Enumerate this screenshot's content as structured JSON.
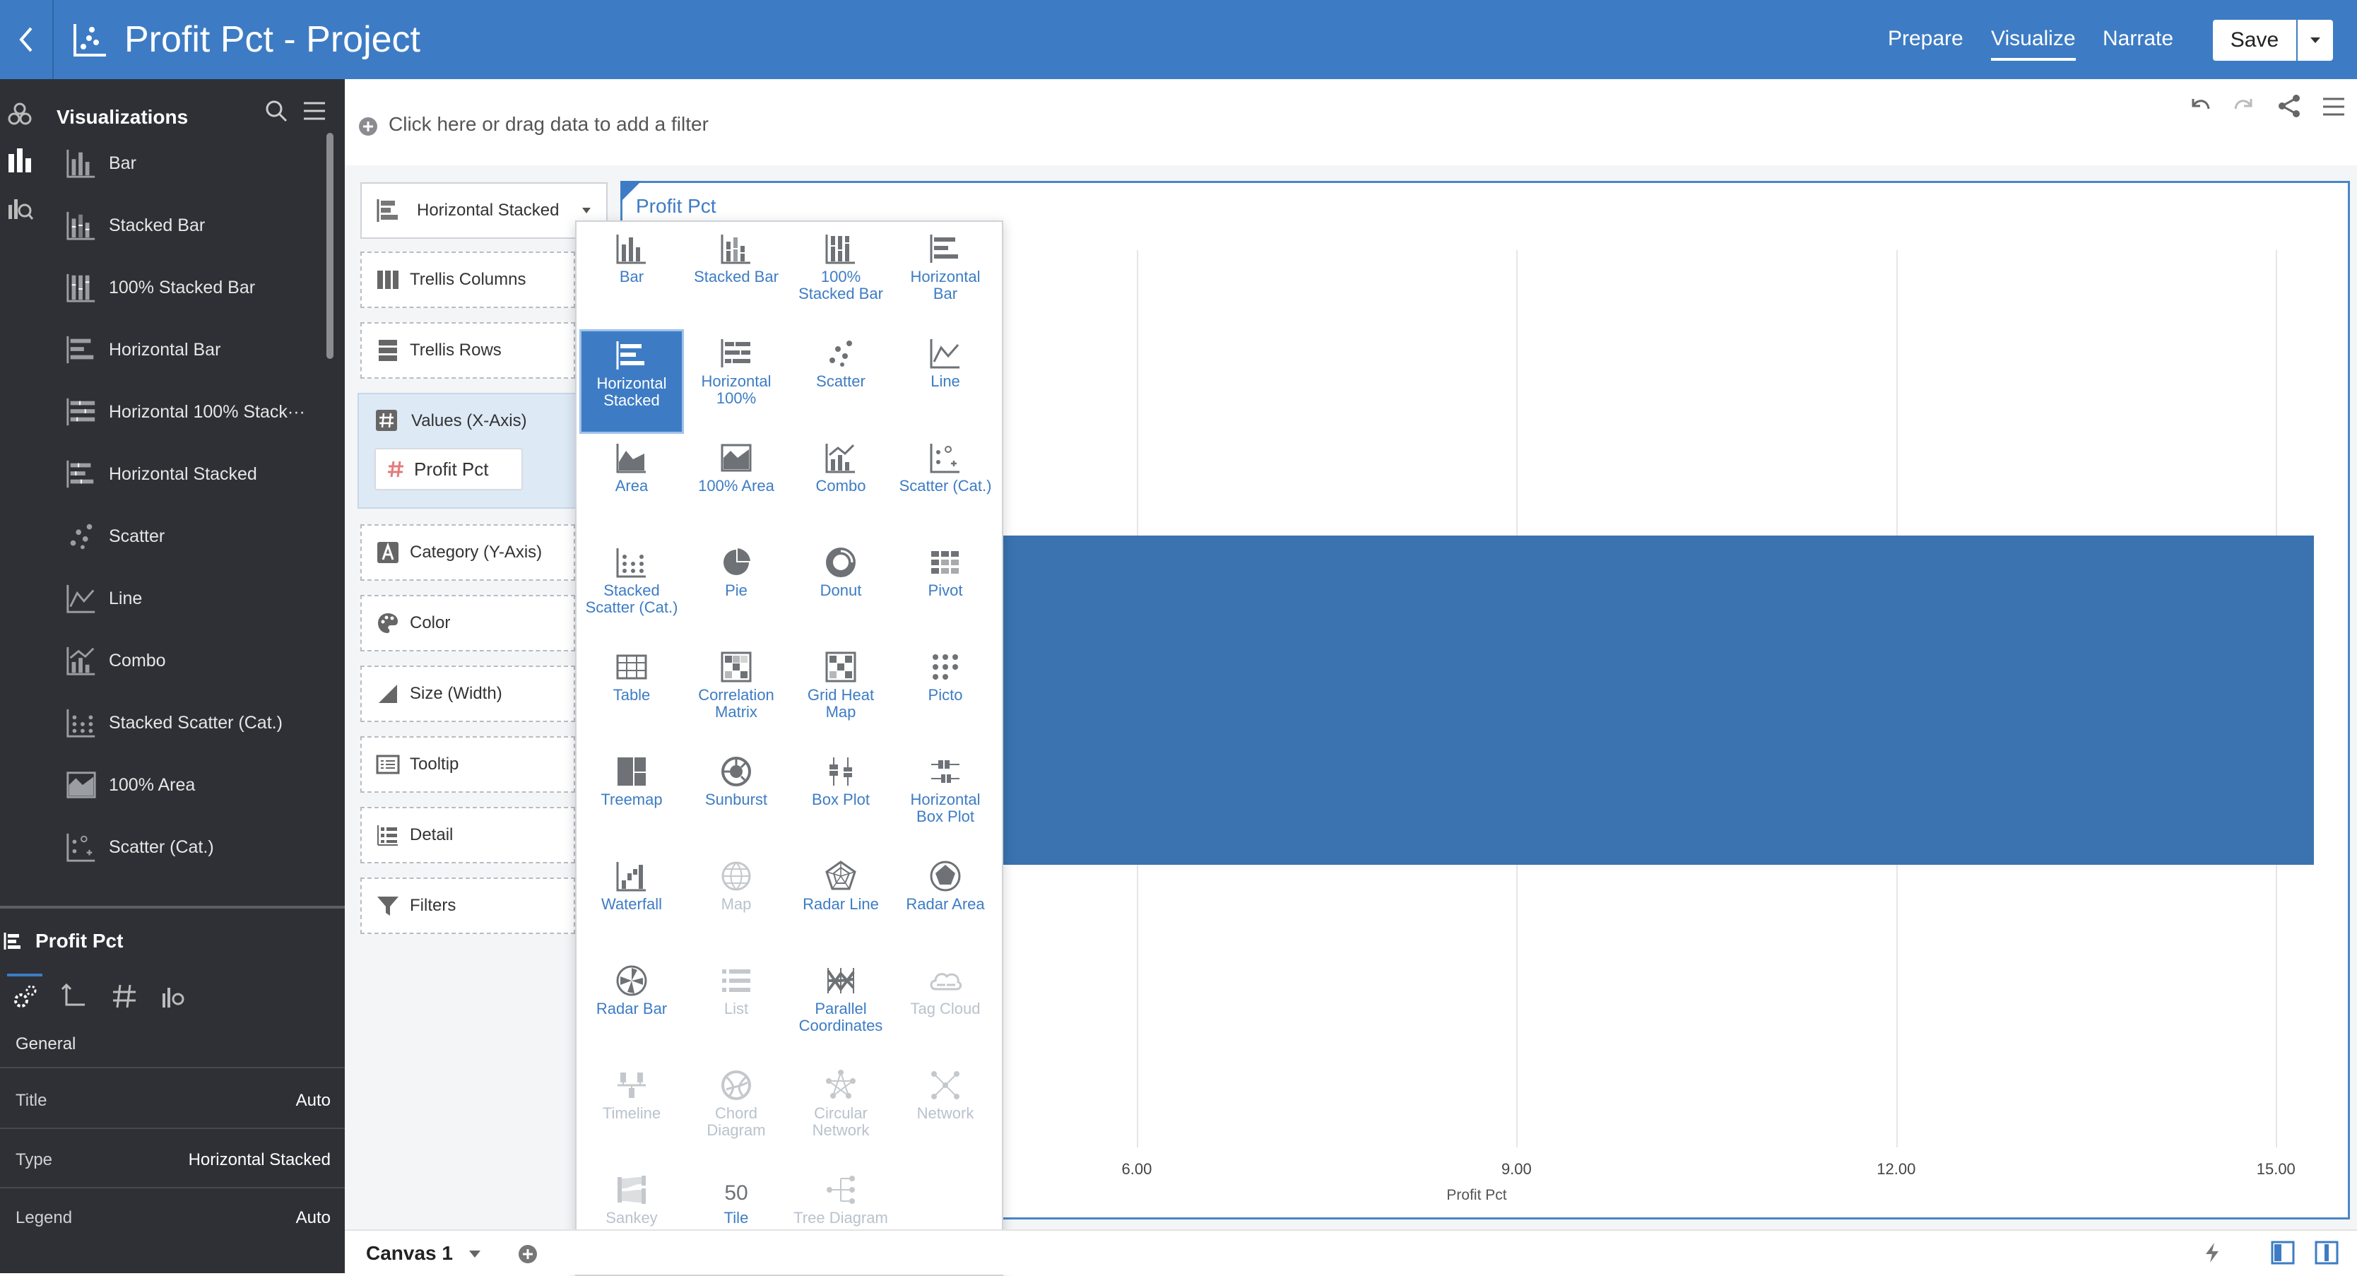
{
  "header": {
    "title": "Profit Pct - Project",
    "tabs": [
      {
        "label": "Prepare"
      },
      {
        "label": "Visualize"
      },
      {
        "label": "Narrate"
      }
    ],
    "save_label": "Save"
  },
  "filter_bar": {
    "placeholder": "Click here or drag data to add a filter"
  },
  "sidebar": {
    "heading": "Visualizations",
    "items": [
      {
        "label": "Bar",
        "icon": "bar-chart-icon"
      },
      {
        "label": "Stacked Bar",
        "icon": "stacked-bar-icon"
      },
      {
        "label": "100% Stacked Bar",
        "icon": "stacked-bar-100-icon"
      },
      {
        "label": "Horizontal Bar",
        "icon": "horizontal-bar-icon"
      },
      {
        "label": "Horizontal 100% Stack···",
        "icon": "horizontal-100-icon"
      },
      {
        "label": "Horizontal Stacked",
        "icon": "horizontal-stacked-icon"
      },
      {
        "label": "Scatter",
        "icon": "scatter-icon"
      },
      {
        "label": "Line",
        "icon": "line-chart-icon"
      },
      {
        "label": "Combo",
        "icon": "combo-chart-icon"
      },
      {
        "label": "Stacked Scatter (Cat.)",
        "icon": "stacked-scatter-icon"
      },
      {
        "label": "100% Area",
        "icon": "area-100-icon"
      },
      {
        "label": "Scatter (Cat.)",
        "icon": "scatter-cat-icon"
      }
    ]
  },
  "properties": {
    "title": "Profit Pct",
    "section": "General",
    "rows": [
      {
        "label": "Title",
        "value": "Auto"
      },
      {
        "label": "Type",
        "value": "Horizontal Stacked"
      },
      {
        "label": "Legend",
        "value": "Auto"
      }
    ]
  },
  "grammar": {
    "type_select": "Horizontal Stacked",
    "zones": {
      "trellis_columns": "Trellis Columns",
      "trellis_rows": "Trellis Rows",
      "values": "Values (X-Axis)",
      "values_chip": "Profit Pct",
      "category": "Category (Y-Axis)",
      "color": "Color",
      "size": "Size (Width)",
      "tooltip": "Tooltip",
      "detail": "Detail",
      "filters": "Filters"
    }
  },
  "chart_data": {
    "type": "bar",
    "orientation": "horizontal",
    "title": "Profit Pct",
    "xlabel": "Profit Pct",
    "x_ticks": [
      "6.00",
      "9.00",
      "12.00",
      "15.00"
    ],
    "xlim": [
      0,
      16.5
    ],
    "series": [
      {
        "values": [
          15.3
        ]
      }
    ],
    "grid": true
  },
  "popup": {
    "selected": "Horizontal Stacked",
    "items": [
      {
        "label": "Bar",
        "icon": "bar-chart-icon",
        "enabled": true
      },
      {
        "label": "Stacked Bar",
        "icon": "stacked-bar-icon",
        "enabled": true
      },
      {
        "label": "100% Stacked Bar",
        "icon": "stacked-bar-100-icon",
        "enabled": true
      },
      {
        "label": "Horizontal Bar",
        "icon": "horizontal-bar-icon",
        "enabled": true
      },
      {
        "label": "Horizontal Stacked",
        "icon": "horizontal-stacked-icon",
        "enabled": true
      },
      {
        "label": "Horizontal 100%",
        "icon": "horizontal-100-icon",
        "enabled": true
      },
      {
        "label": "Scatter",
        "icon": "scatter-icon",
        "enabled": true
      },
      {
        "label": "Line",
        "icon": "line-chart-icon",
        "enabled": true
      },
      {
        "label": "Area",
        "icon": "area-icon",
        "enabled": true
      },
      {
        "label": "100% Area",
        "icon": "area-100-icon",
        "enabled": true
      },
      {
        "label": "Combo",
        "icon": "combo-chart-icon",
        "enabled": true
      },
      {
        "label": "Scatter (Cat.)",
        "icon": "scatter-cat-icon",
        "enabled": true
      },
      {
        "label": "Stacked Scatter (Cat.)",
        "icon": "stacked-scatter-icon",
        "enabled": true
      },
      {
        "label": "Pie",
        "icon": "pie-icon",
        "enabled": true
      },
      {
        "label": "Donut",
        "icon": "donut-icon",
        "enabled": true
      },
      {
        "label": "Pivot",
        "icon": "pivot-icon",
        "enabled": true
      },
      {
        "label": "Table",
        "icon": "table-icon",
        "enabled": true
      },
      {
        "label": "Correlation Matrix",
        "icon": "correlation-matrix-icon",
        "enabled": true
      },
      {
        "label": "Grid Heat Map",
        "icon": "grid-heat-map-icon",
        "enabled": true
      },
      {
        "label": "Picto",
        "icon": "picto-icon",
        "enabled": true
      },
      {
        "label": "Treemap",
        "icon": "treemap-icon",
        "enabled": true
      },
      {
        "label": "Sunburst",
        "icon": "sunburst-icon",
        "enabled": true
      },
      {
        "label": "Box Plot",
        "icon": "box-plot-icon",
        "enabled": true
      },
      {
        "label": "Horizontal Box Plot",
        "icon": "horizontal-box-plot-icon",
        "enabled": true
      },
      {
        "label": "Waterfall",
        "icon": "waterfall-icon",
        "enabled": true
      },
      {
        "label": "Map",
        "icon": "map-icon",
        "enabled": false
      },
      {
        "label": "Radar Line",
        "icon": "radar-line-icon",
        "enabled": true
      },
      {
        "label": "Radar Area",
        "icon": "radar-area-icon",
        "enabled": true
      },
      {
        "label": "Radar Bar",
        "icon": "radar-bar-icon",
        "enabled": true
      },
      {
        "label": "List",
        "icon": "list-icon",
        "enabled": false
      },
      {
        "label": "Parallel Coordinates",
        "icon": "parallel-coordinates-icon",
        "enabled": true
      },
      {
        "label": "Tag Cloud",
        "icon": "tag-cloud-icon",
        "enabled": false
      },
      {
        "label": "Timeline",
        "icon": "timeline-icon",
        "enabled": false
      },
      {
        "label": "Chord Diagram",
        "icon": "chord-diagram-icon",
        "enabled": false
      },
      {
        "label": "Circular Network",
        "icon": "circular-network-icon",
        "enabled": false
      },
      {
        "label": "Network",
        "icon": "network-icon",
        "enabled": false
      },
      {
        "label": "Sankey",
        "icon": "sankey-icon",
        "enabled": false
      },
      {
        "label": "Tile",
        "icon": "tile-icon",
        "enabled": true
      },
      {
        "label": "Tree Diagram",
        "icon": "tree-diagram-icon",
        "enabled": false
      }
    ]
  },
  "bottom": {
    "canvas_tab": "Canvas 1"
  },
  "colors": {
    "accent": "#3d7cc4",
    "bar": "#3a73b0",
    "sidebar": "#2e3036"
  }
}
